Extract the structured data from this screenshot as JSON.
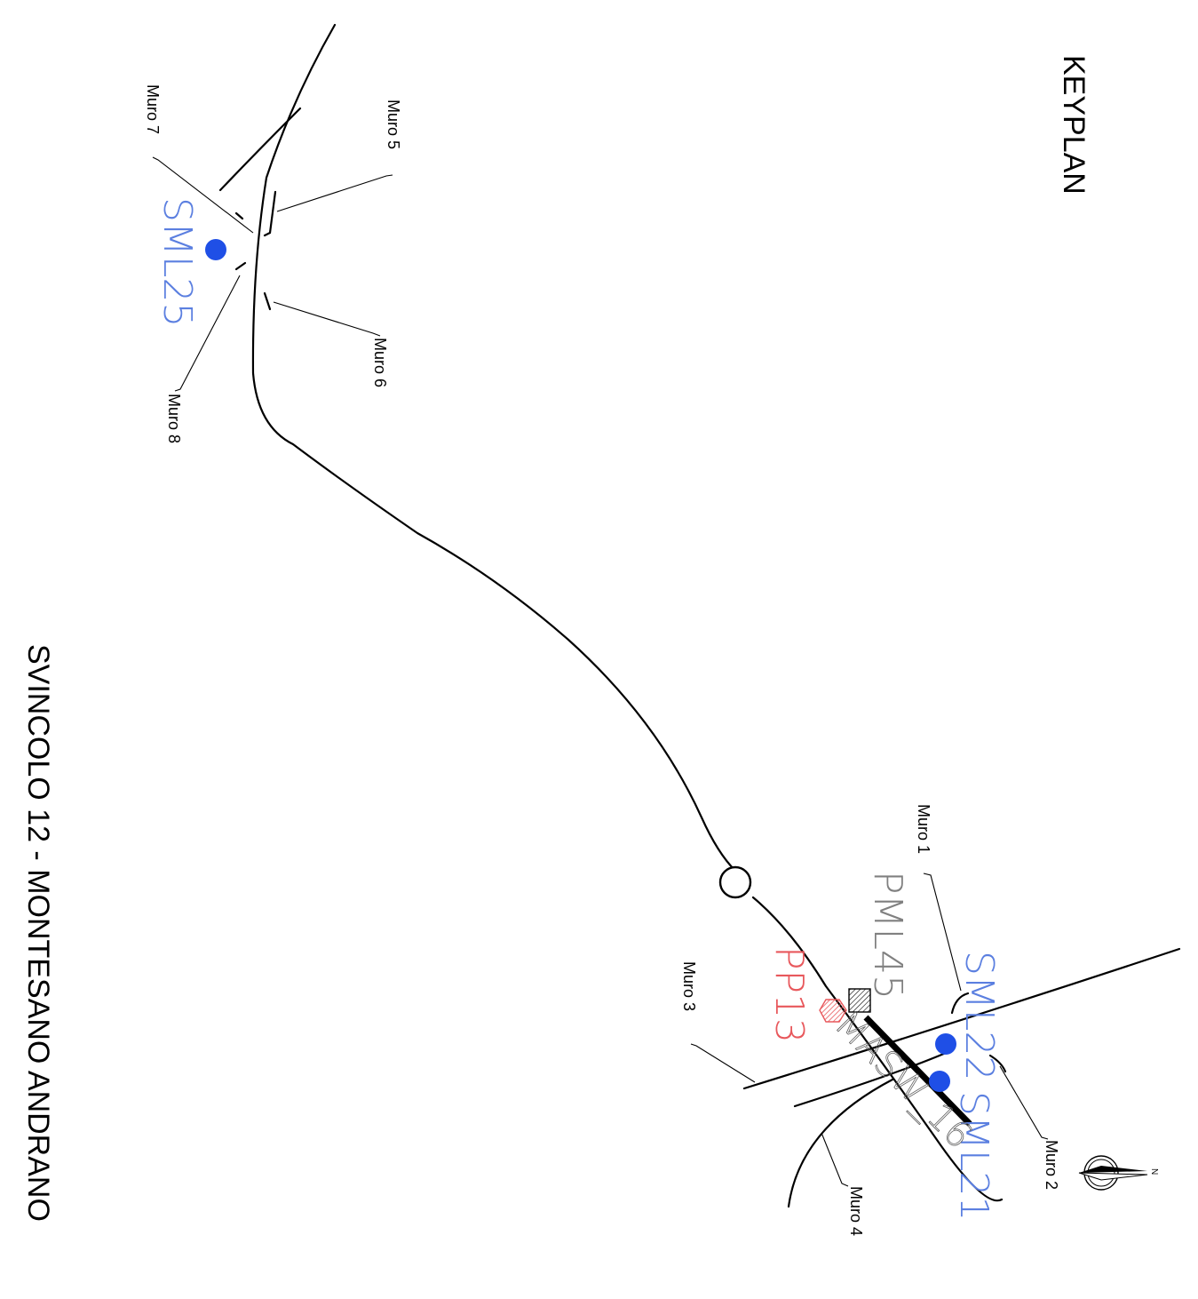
{
  "title": "KEYPLAN",
  "subtitle": "SVINCOLO 12 - MONTESANO ANDRANO",
  "north_label": "N",
  "colors": {
    "blue": "#1f4fe6",
    "blue_text": "#5b7fe0",
    "red": "#e8585c",
    "grey": "#808080"
  },
  "walls": {
    "muro1": "Muro 1",
    "muro2": "Muro 2",
    "muro3": "Muro 3",
    "muro4": "Muro 4",
    "muro5": "Muro 5",
    "muro6": "Muro 6",
    "muro7": "Muro 7",
    "muro8": "Muro 8"
  },
  "points": {
    "sml25": "SML25",
    "sml22": "SML22",
    "sml21": "SML21",
    "pml45": "PML45",
    "pp13": "PP13",
    "masw16": "MASW_16"
  }
}
